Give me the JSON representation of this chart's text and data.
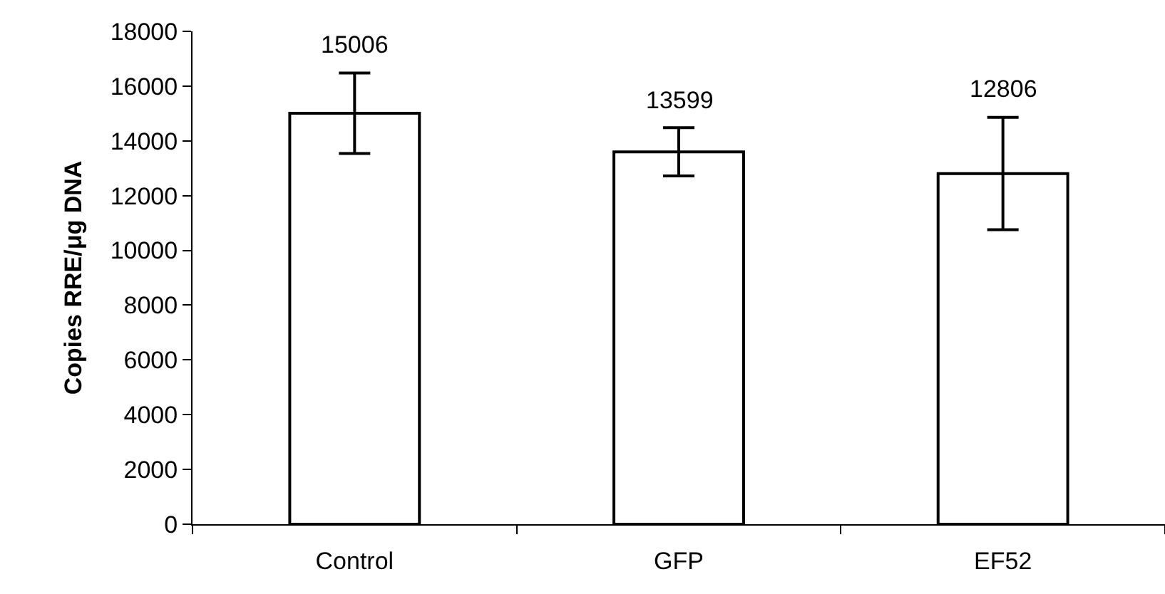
{
  "chart_data": {
    "type": "bar",
    "ylabel": "Copies RRE/μg DNA",
    "categories": [
      "Control",
      "GFP",
      "EF52"
    ],
    "values": [
      15006,
      13599,
      12806
    ],
    "errors": [
      1470,
      880,
      2050
    ],
    "color": "#ffffff",
    "data_labels": true,
    "ylim": [
      0,
      18000
    ],
    "yticks": [
      0,
      2000,
      4000,
      6000,
      8000,
      10000,
      12000,
      14000,
      16000,
      18000
    ],
    "legend": false
  }
}
